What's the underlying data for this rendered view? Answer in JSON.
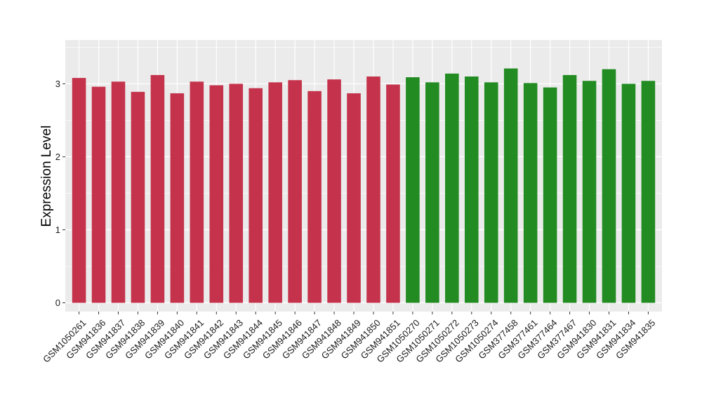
{
  "chart_data": {
    "type": "bar",
    "ylabel": "Expression Level",
    "xlabel": "",
    "ylim": [
      -0.12,
      3.6
    ],
    "y_ticks": [
      0,
      1,
      2,
      3
    ],
    "grid": true,
    "categories": [
      "GSM1050261",
      "GSM941836",
      "GSM941837",
      "GSM941838",
      "GSM941839",
      "GSM941840",
      "GSM941841",
      "GSM941842",
      "GSM941843",
      "GSM941844",
      "GSM941845",
      "GSM941846",
      "GSM941847",
      "GSM941848",
      "GSM941849",
      "GSM941850",
      "GSM941851",
      "GSM1050270",
      "GSM1050271",
      "GSM1050272",
      "GSM1050273",
      "GSM1050274",
      "GSM377458",
      "GSM377461",
      "GSM377464",
      "GSM377467",
      "GSM941830",
      "GSM941831",
      "GSM941834",
      "GSM941835"
    ],
    "values": [
      3.08,
      2.96,
      3.03,
      2.89,
      3.12,
      2.87,
      3.03,
      2.98,
      3.0,
      2.94,
      3.02,
      3.05,
      2.9,
      3.06,
      2.87,
      3.1,
      2.99,
      3.09,
      3.02,
      3.14,
      3.1,
      3.02,
      3.21,
      3.01,
      2.95,
      3.12,
      3.04,
      3.2,
      3.0,
      3.04
    ],
    "bar_colors": [
      "#c4334b",
      "#c4334b",
      "#c4334b",
      "#c4334b",
      "#c4334b",
      "#c4334b",
      "#c4334b",
      "#c4334b",
      "#c4334b",
      "#c4334b",
      "#c4334b",
      "#c4334b",
      "#c4334b",
      "#c4334b",
      "#c4334b",
      "#c4334b",
      "#c4334b",
      "#228b22",
      "#228b22",
      "#228b22",
      "#228b22",
      "#228b22",
      "#228b22",
      "#228b22",
      "#228b22",
      "#228b22",
      "#228b22",
      "#228b22",
      "#228b22",
      "#228b22"
    ],
    "panel_background": "#ebebeb",
    "grid_color": "#ffffff"
  }
}
